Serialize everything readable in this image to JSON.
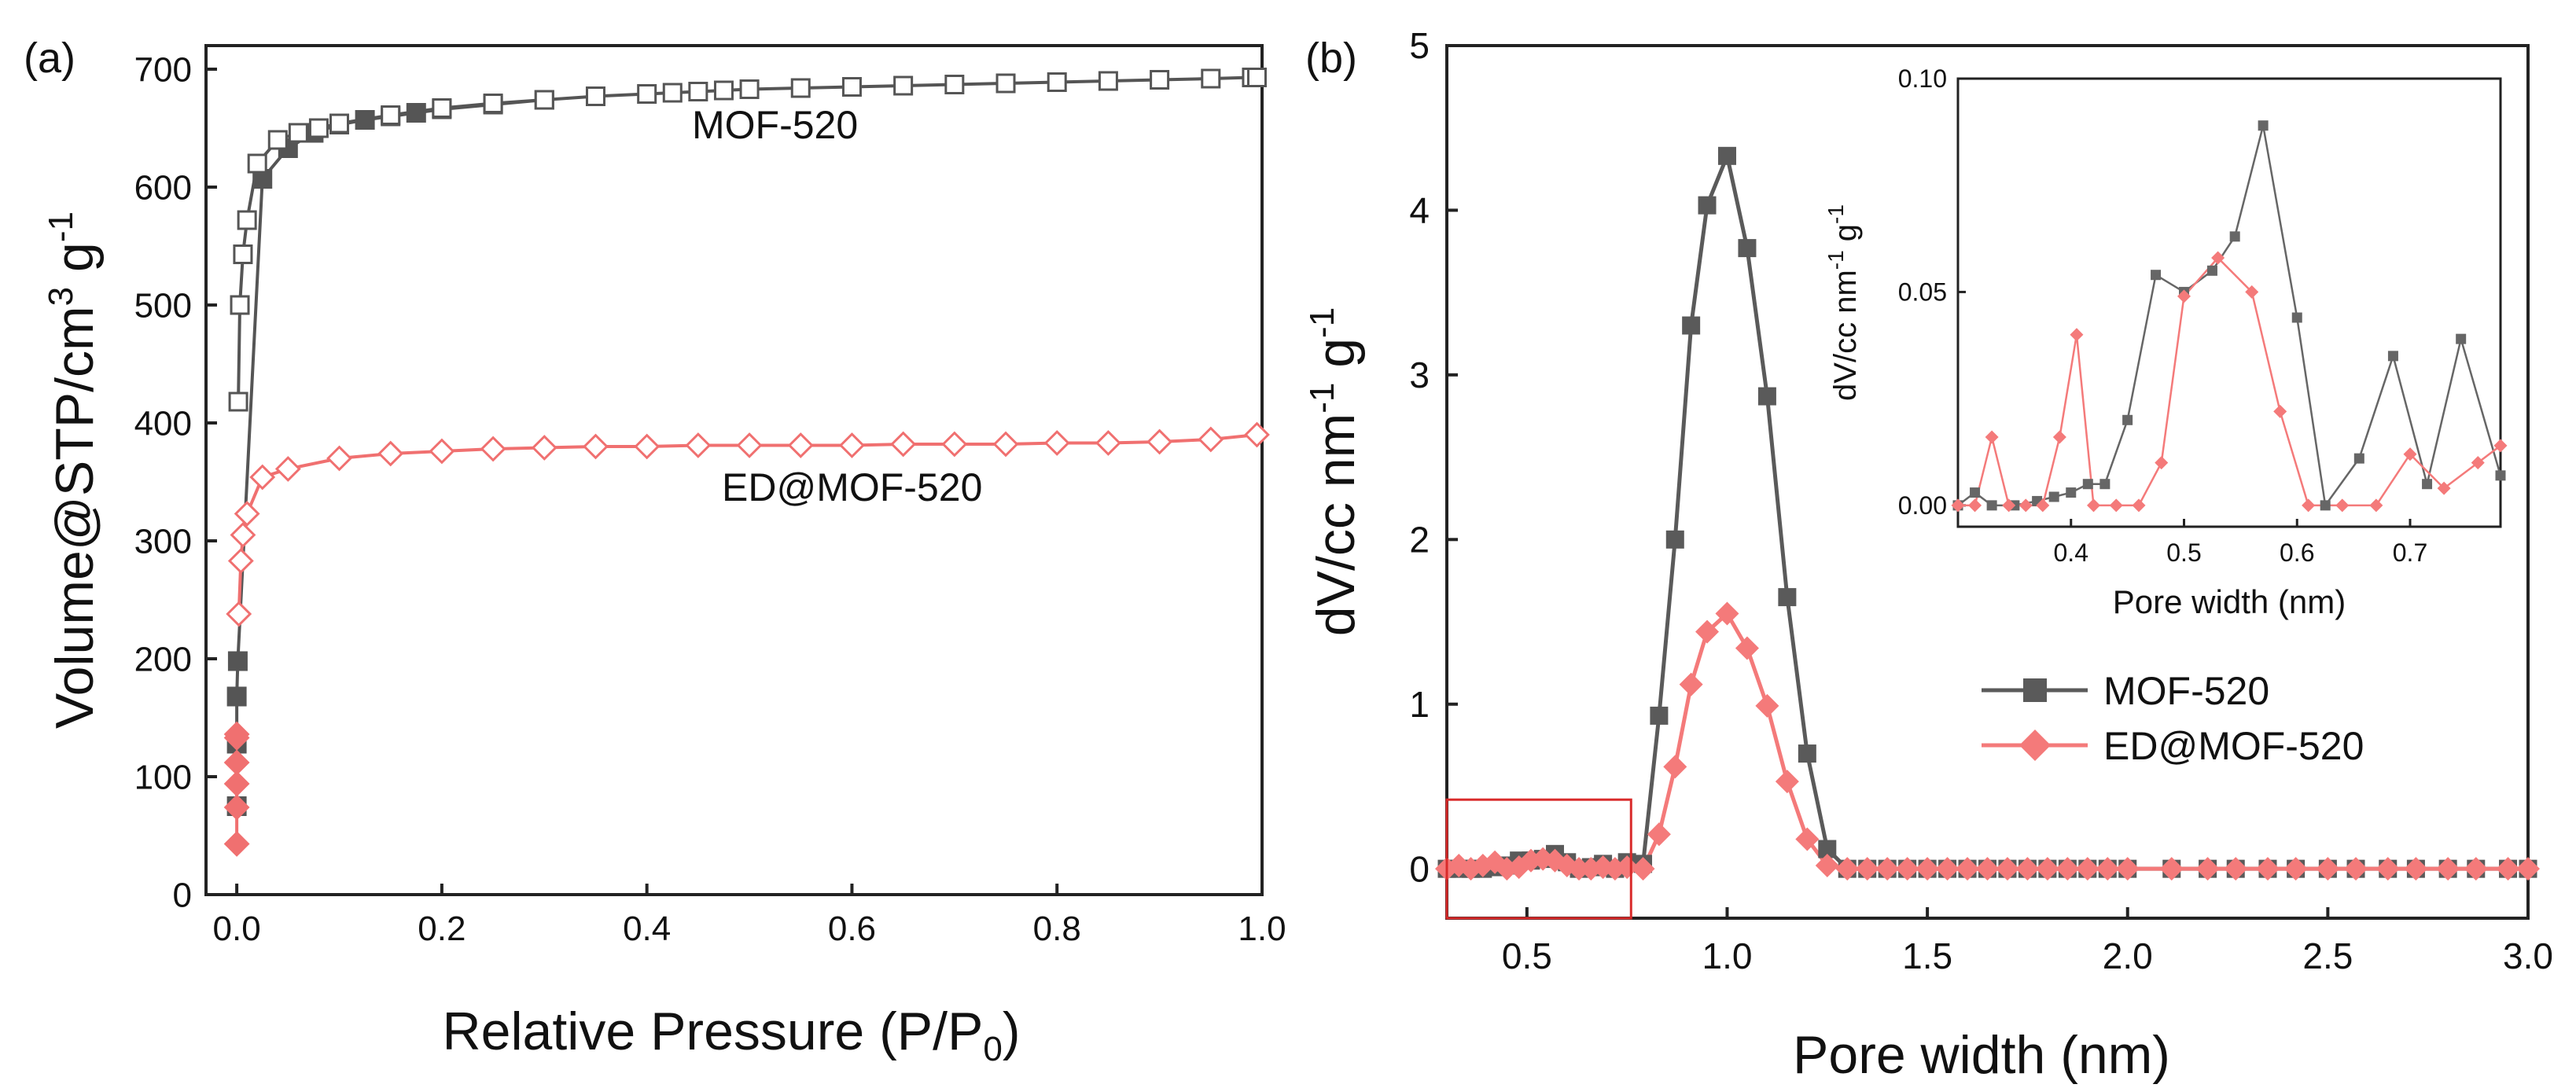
{
  "chart_data": [
    {
      "panel": "(a)",
      "type": "scatter",
      "title": "",
      "xlabel_parts": {
        "main": "Relative Pressure (P/P",
        "sub": "0",
        "end": ")"
      },
      "ylabel_parts": {
        "main": "Volume@STP/cm",
        "sup": "3",
        "mid": " g",
        "sup2": "-1"
      },
      "xlim": [
        -0.03,
        1.0
      ],
      "ylim": [
        0,
        720
      ],
      "xticks": [
        "0.0",
        "0.2",
        "0.4",
        "0.6",
        "0.8",
        "1.0"
      ],
      "yticks": [
        "0",
        "100",
        "200",
        "300",
        "400",
        "500",
        "600",
        "700"
      ],
      "annotations": [
        "MOF-520",
        "ED@MOF-520"
      ],
      "series": [
        {
          "name": "MOF-520 adsorption",
          "color": "#555555",
          "marker": "square",
          "filled": true,
          "x": [
            0.0,
            0.0,
            0.0,
            0.001,
            0.025,
            0.05,
            0.075,
            0.1,
            0.125,
            0.15,
            0.175,
            0.2,
            0.25,
            0.3
          ],
          "y": [
            75,
            128,
            168,
            198,
            607,
            633,
            646,
            653,
            657,
            660,
            663,
            666,
            670,
            674
          ]
        },
        {
          "name": "MOF-520 desorption",
          "color": "#555555",
          "marker": "square",
          "filled": false,
          "x": [
            0.0015,
            0.003,
            0.006,
            0.01,
            0.02,
            0.04,
            0.06,
            0.08,
            0.1,
            0.15,
            0.2,
            0.25,
            0.3,
            0.35,
            0.4,
            0.425,
            0.45,
            0.475,
            0.5,
            0.55,
            0.6,
            0.65,
            0.7,
            0.75,
            0.8,
            0.85,
            0.9,
            0.95,
            0.99,
            0.995
          ],
          "y": [
            418,
            500,
            543,
            572,
            620,
            640,
            646,
            650,
            654,
            661,
            667,
            671,
            674,
            677,
            679,
            680,
            681,
            682,
            683,
            684,
            685,
            686,
            687,
            688,
            689,
            690,
            691,
            692,
            693,
            693
          ]
        },
        {
          "name": "ED@MOF-520 adsorption",
          "color": "#f07070",
          "marker": "diamond",
          "filled": true,
          "x": [
            0.0,
            0.0,
            0.0,
            0.0,
            0.0,
            0.0
          ],
          "y": [
            43,
            74,
            94,
            112,
            133,
            136
          ]
        },
        {
          "name": "ED@MOF-520 desorption",
          "color": "#f07070",
          "marker": "diamond",
          "filled": false,
          "x": [
            0.002,
            0.004,
            0.006,
            0.01,
            0.025,
            0.05,
            0.1,
            0.15,
            0.2,
            0.25,
            0.3,
            0.35,
            0.4,
            0.45,
            0.5,
            0.55,
            0.6,
            0.65,
            0.7,
            0.75,
            0.8,
            0.85,
            0.9,
            0.95,
            0.995
          ],
          "y": [
            238,
            283,
            305,
            323,
            354,
            361,
            370,
            374,
            376,
            378,
            379,
            380,
            380,
            381,
            381,
            381,
            381,
            382,
            382,
            382,
            383,
            383,
            384,
            386,
            390
          ]
        }
      ]
    },
    {
      "panel": "(b)",
      "type": "line",
      "title": "",
      "xlabel": "Pore width (nm)",
      "ylabel_parts": {
        "main": "dV/cc nm",
        "sup": "-1",
        "mid": " g",
        "sup2": "-1"
      },
      "xlim": [
        0.3,
        3.0
      ],
      "ylim": [
        -0.3,
        5.0
      ],
      "xticks": [
        "0.5",
        "1.0",
        "1.5",
        "2.0",
        "2.5",
        "3.0"
      ],
      "yticks": [
        "0",
        "1",
        "2",
        "3",
        "4",
        "5"
      ],
      "legend": [
        "MOF-520",
        "ED@MOF-520"
      ],
      "legend_position": "lower-right",
      "highlight_box": {
        "x0": 0.3,
        "x1": 0.76,
        "y0": -0.3,
        "y1": 0.42
      },
      "series": [
        {
          "name": "MOF-520",
          "color": "#5a5a5a",
          "marker": "square",
          "x": [
            0.3,
            0.33,
            0.36,
            0.39,
            0.42,
            0.45,
            0.48,
            0.51,
            0.54,
            0.57,
            0.6,
            0.63,
            0.66,
            0.69,
            0.72,
            0.75,
            0.79,
            0.83,
            0.87,
            0.91,
            0.95,
            1.0,
            1.05,
            1.1,
            1.15,
            1.2,
            1.25,
            1.3,
            1.35,
            1.4,
            1.45,
            1.5,
            1.55,
            1.6,
            1.65,
            1.7,
            1.75,
            1.8,
            1.85,
            1.9,
            1.95,
            2.0,
            2.11,
            2.2,
            2.27,
            2.35,
            2.42,
            2.5,
            2.57,
            2.65,
            2.72,
            2.8,
            2.87,
            2.95,
            3.0
          ],
          "y": [
            0.0,
            0.0,
            0.0,
            0.0,
            0.01,
            0.02,
            0.05,
            0.05,
            0.06,
            0.09,
            0.04,
            0.0,
            0.01,
            0.03,
            0.0,
            0.04,
            0.03,
            0.93,
            2.0,
            3.3,
            4.03,
            4.33,
            3.77,
            2.87,
            1.65,
            0.7,
            0.12,
            0.0,
            0.0,
            0.0,
            0.0,
            0.0,
            0.0,
            0.0,
            0.0,
            0.0,
            0.0,
            0.0,
            0.0,
            0.0,
            0.0,
            0.0,
            0.0,
            0.0,
            0.0,
            0.0,
            0.0,
            0.0,
            0.0,
            0.0,
            0.0,
            0.0,
            0.0,
            0.0,
            0.0
          ]
        },
        {
          "name": "ED@MOF-520",
          "color": "#f47a7a",
          "marker": "diamond",
          "x": [
            0.3,
            0.33,
            0.36,
            0.39,
            0.42,
            0.45,
            0.48,
            0.51,
            0.54,
            0.57,
            0.6,
            0.63,
            0.66,
            0.69,
            0.72,
            0.75,
            0.79,
            0.83,
            0.87,
            0.91,
            0.95,
            1.0,
            1.05,
            1.1,
            1.15,
            1.2,
            1.25,
            1.3,
            1.35,
            1.4,
            1.45,
            1.5,
            1.55,
            1.6,
            1.65,
            1.7,
            1.75,
            1.8,
            1.85,
            1.9,
            1.95,
            2.0,
            2.11,
            2.2,
            2.27,
            2.35,
            2.42,
            2.5,
            2.57,
            2.65,
            2.72,
            2.8,
            2.87,
            2.95,
            3.0
          ],
          "y": [
            0.0,
            0.02,
            0.0,
            0.02,
            0.04,
            0.0,
            0.01,
            0.05,
            0.06,
            0.05,
            0.02,
            0.0,
            0.0,
            0.01,
            0.0,
            0.01,
            0.0,
            0.21,
            0.62,
            1.12,
            1.44,
            1.55,
            1.34,
            0.99,
            0.53,
            0.18,
            0.02,
            0.0,
            0.0,
            0.0,
            0.0,
            0.0,
            0.0,
            0.0,
            0.0,
            0.0,
            0.0,
            0.0,
            0.0,
            0.0,
            0.0,
            0.0,
            0.0,
            0.0,
            0.0,
            0.0,
            0.0,
            0.0,
            0.0,
            0.0,
            0.0,
            0.0,
            0.0,
            0.0,
            0.0
          ]
        }
      ]
    },
    {
      "panel": "(b) inset",
      "type": "line",
      "title": "",
      "xlabel": "Pore width (nm)",
      "ylabel_parts": {
        "main": "dV/cc nm",
        "sup": "-1",
        "mid": " g",
        "sup2": "-1"
      },
      "xlim": [
        0.3,
        0.78
      ],
      "ylim": [
        -0.005,
        0.1
      ],
      "xticks": [
        "0.4",
        "0.5",
        "0.6",
        "0.7"
      ],
      "yticks": [
        "0.00",
        "0.05",
        "0.10"
      ],
      "series": [
        {
          "name": "MOF-520",
          "color": "#666666",
          "marker": "square",
          "x": [
            0.3,
            0.315,
            0.33,
            0.35,
            0.37,
            0.385,
            0.4,
            0.415,
            0.43,
            0.45,
            0.475,
            0.5,
            0.525,
            0.545,
            0.57,
            0.6,
            0.625,
            0.655,
            0.685,
            0.715,
            0.745,
            0.78
          ],
          "y": [
            0.0,
            0.003,
            0.0,
            0.0,
            0.001,
            0.002,
            0.003,
            0.005,
            0.005,
            0.02,
            0.054,
            0.05,
            0.055,
            0.063,
            0.089,
            0.044,
            0.0,
            0.011,
            0.035,
            0.005,
            0.039,
            0.007
          ]
        },
        {
          "name": "ED@MOF-520",
          "color": "#f47a7a",
          "marker": "diamond",
          "x": [
            0.3,
            0.315,
            0.33,
            0.345,
            0.36,
            0.375,
            0.39,
            0.405,
            0.42,
            0.44,
            0.46,
            0.48,
            0.5,
            0.53,
            0.56,
            0.585,
            0.61,
            0.64,
            0.67,
            0.7,
            0.73,
            0.76,
            0.78
          ],
          "y": [
            0.0,
            0.0,
            0.016,
            0.0,
            0.0,
            0.0,
            0.016,
            0.04,
            0.0,
            0.0,
            0.0,
            0.01,
            0.049,
            0.058,
            0.05,
            0.022,
            0.0,
            0.0,
            0.0,
            0.012,
            0.004,
            0.01,
            0.014
          ]
        }
      ]
    }
  ]
}
